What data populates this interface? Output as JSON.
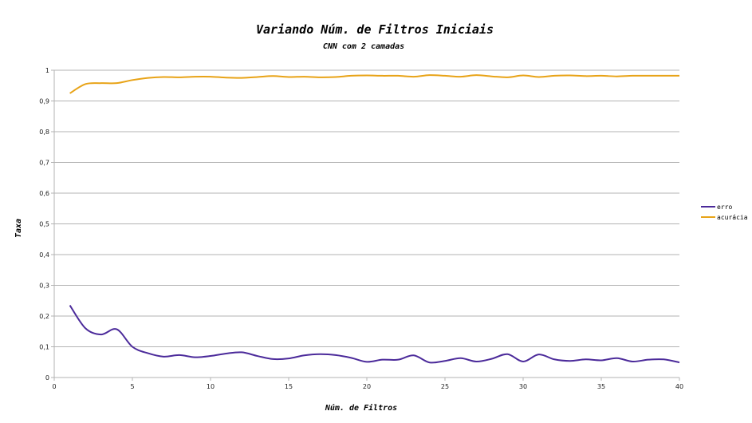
{
  "chart_data": {
    "type": "line",
    "title": "Variando Núm. de Filtros Iniciais",
    "subtitle": "CNN com 2 camadas",
    "xlabel": "Núm. de Filtros",
    "ylabel": "Taxa",
    "xlim": [
      0,
      40
    ],
    "ylim": [
      0,
      1
    ],
    "x_ticks": [
      0,
      5,
      10,
      15,
      20,
      25,
      30,
      35,
      40
    ],
    "x_tick_labels": [
      "0",
      "5",
      "10",
      "15",
      "20",
      "25",
      "30",
      "35",
      "40"
    ],
    "y_ticks": [
      0,
      0.1,
      0.2,
      0.3,
      0.4,
      0.5,
      0.6,
      0.7,
      0.8,
      0.9,
      1
    ],
    "y_tick_labels": [
      "0",
      "0,1",
      "0,2",
      "0,3",
      "0,4",
      "0,5",
      "0,6",
      "0,7",
      "0,8",
      "0,9",
      "1"
    ],
    "grid": true,
    "legend_position": "right",
    "x": [
      1,
      2,
      3,
      4,
      5,
      6,
      7,
      8,
      9,
      10,
      11,
      12,
      13,
      14,
      15,
      16,
      17,
      18,
      19,
      20,
      21,
      22,
      23,
      24,
      25,
      26,
      27,
      28,
      29,
      30,
      31,
      32,
      33,
      34,
      35,
      36,
      37,
      38,
      39,
      40
    ],
    "series": [
      {
        "name": "erro",
        "color": "#4b2a9a",
        "values": [
          0.235,
          0.16,
          0.14,
          0.157,
          0.1,
          0.079,
          0.068,
          0.073,
          0.066,
          0.07,
          0.078,
          0.082,
          0.07,
          0.06,
          0.062,
          0.072,
          0.076,
          0.073,
          0.064,
          0.051,
          0.058,
          0.058,
          0.072,
          0.049,
          0.054,
          0.063,
          0.052,
          0.061,
          0.076,
          0.052,
          0.075,
          0.059,
          0.054,
          0.059,
          0.056,
          0.063,
          0.052,
          0.058,
          0.059,
          0.049
        ]
      },
      {
        "name": "acurácia",
        "color": "#e8a317",
        "values": [
          0.925,
          0.955,
          0.958,
          0.958,
          0.968,
          0.975,
          0.978,
          0.977,
          0.979,
          0.979,
          0.976,
          0.975,
          0.978,
          0.981,
          0.978,
          0.979,
          0.977,
          0.978,
          0.982,
          0.983,
          0.982,
          0.982,
          0.979,
          0.984,
          0.982,
          0.979,
          0.984,
          0.98,
          0.977,
          0.983,
          0.978,
          0.982,
          0.983,
          0.981,
          0.982,
          0.98,
          0.982,
          0.982,
          0.982,
          0.982
        ]
      }
    ]
  }
}
